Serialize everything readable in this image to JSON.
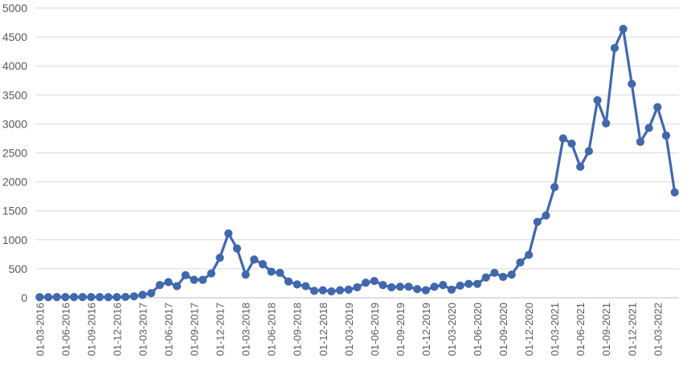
{
  "chart_data": {
    "type": "line",
    "title": "",
    "xlabel": "",
    "ylabel": "",
    "ylim": [
      0,
      5000
    ],
    "yticks": [
      0,
      500,
      1000,
      1500,
      2000,
      2500,
      3000,
      3500,
      4000,
      4500,
      5000
    ],
    "grid": "horizontal",
    "legend": "none",
    "color": "#4068ad",
    "x_tick_labels": [
      "01-03-2016",
      "01-06-2016",
      "01-09-2016",
      "01-12-2016",
      "01-03-2017",
      "01-06-2017",
      "01-09-2017",
      "01-12-2017",
      "01-03-2018",
      "01-06-2018",
      "01-09-2018",
      "01-12-2018",
      "01-03-2019",
      "01-06-2019",
      "01-09-2019",
      "01-12-2019",
      "01-03-2020",
      "01-06-2020",
      "01-09-2020",
      "01-12-2020",
      "01-03-2021",
      "01-06-2021",
      "01-09-2021",
      "01-12-2021",
      "01-03-2022"
    ],
    "series": [
      {
        "values": [
          10,
          10,
          12,
          12,
          12,
          12,
          12,
          12,
          10,
          12,
          15,
          25,
          50,
          80,
          220,
          270,
          200,
          390,
          310,
          310,
          420,
          690,
          1110,
          850,
          400,
          660,
          580,
          450,
          430,
          280,
          230,
          200,
          120,
          130,
          110,
          130,
          140,
          180,
          260,
          290,
          220,
          180,
          190,
          190,
          150,
          130,
          190,
          220,
          140,
          210,
          240,
          240,
          350,
          430,
          360,
          400,
          610,
          740,
          1310,
          1420,
          1910,
          2750,
          2660,
          2260,
          2530,
          3410,
          3010,
          4310,
          4640,
          3690,
          2690,
          2930,
          3290,
          2800,
          1820
        ]
      }
    ]
  }
}
